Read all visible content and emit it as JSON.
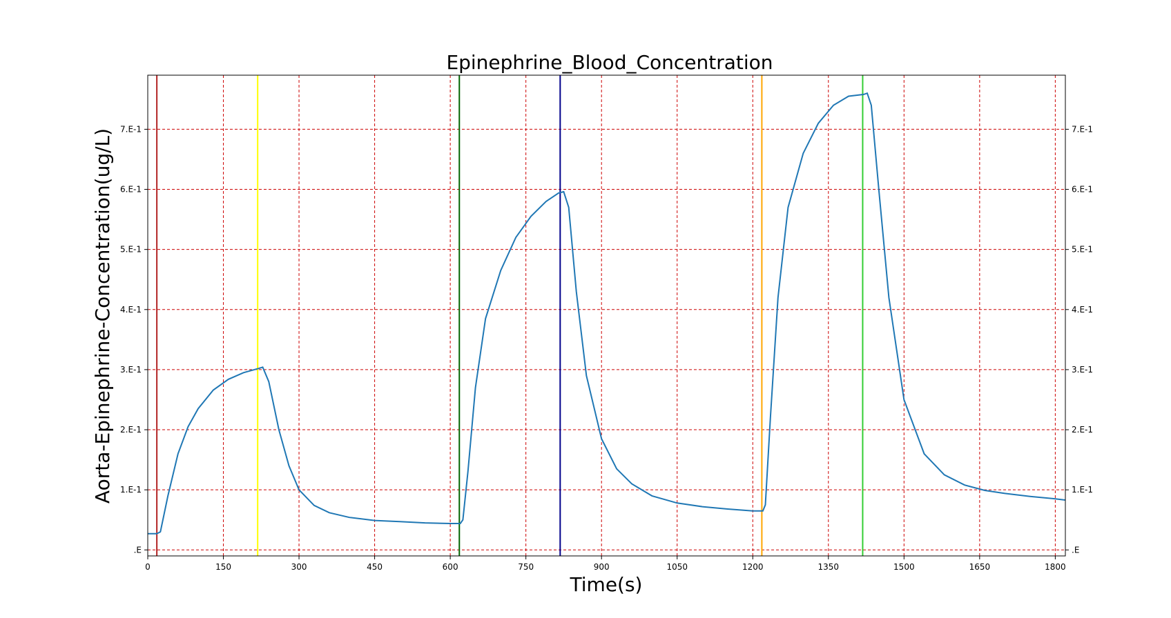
{
  "chart_data": {
    "type": "line",
    "title": "Epinephrine_Blood_Concentration",
    "xlabel": "Time(s)",
    "ylabel": "Aorta-Epinephrine-Concentration(ug/L)",
    "xlim": [
      0,
      1820
    ],
    "ylim": [
      -0.01,
      0.79
    ],
    "grid": true,
    "x_ticks": [
      0,
      150,
      300,
      450,
      600,
      750,
      900,
      1050,
      1200,
      1350,
      1500,
      1650,
      1800
    ],
    "x_tick_labels": [
      "0",
      "150",
      "300",
      "450",
      "600",
      "750",
      "900",
      "1050",
      "1200",
      "1350",
      "1500",
      "1650",
      "1800"
    ],
    "y_ticks": [
      0,
      0.1,
      0.2,
      0.3,
      0.4,
      0.5,
      0.6,
      0.7
    ],
    "y_tick_labels": [
      ".E",
      "1.E-1",
      "2.E-1",
      "3.E-1",
      "4.E-1",
      "5.E-1",
      "6.E-1",
      "7.E-1"
    ],
    "series_color": "#1f77b4",
    "series": [
      {
        "x": [
          0,
          18,
          25,
          40,
          60,
          80,
          100,
          130,
          160,
          190,
          220,
          228,
          240,
          260,
          280,
          300,
          330,
          360,
          400,
          450,
          500,
          550,
          600,
          620,
          625,
          635,
          650,
          670,
          700,
          730,
          760,
          790,
          815,
          825,
          835,
          850,
          870,
          900,
          930,
          960,
          1000,
          1050,
          1100,
          1150,
          1200,
          1220,
          1225,
          1235,
          1250,
          1270,
          1300,
          1330,
          1360,
          1390,
          1420,
          1427,
          1435,
          1450,
          1470,
          1500,
          1540,
          1580,
          1620,
          1660,
          1700,
          1750,
          1800,
          1820
        ],
        "y": [
          0.027,
          0.027,
          0.03,
          0.09,
          0.16,
          0.205,
          0.235,
          0.266,
          0.284,
          0.295,
          0.302,
          0.304,
          0.28,
          0.2,
          0.14,
          0.1,
          0.074,
          0.062,
          0.054,
          0.049,
          0.047,
          0.045,
          0.044,
          0.044,
          0.05,
          0.13,
          0.27,
          0.385,
          0.465,
          0.52,
          0.555,
          0.58,
          0.594,
          0.596,
          0.57,
          0.43,
          0.29,
          0.185,
          0.135,
          0.11,
          0.09,
          0.078,
          0.072,
          0.068,
          0.065,
          0.065,
          0.075,
          0.22,
          0.42,
          0.57,
          0.66,
          0.71,
          0.74,
          0.755,
          0.758,
          0.76,
          0.74,
          0.6,
          0.42,
          0.25,
          0.16,
          0.125,
          0.108,
          0.099,
          0.094,
          0.089,
          0.085,
          0.083
        ]
      }
    ],
    "event_lines": [
      {
        "x": 18,
        "color": "#b22222"
      },
      {
        "x": 218,
        "color": "#ffff00"
      },
      {
        "x": 618,
        "color": "#006400"
      },
      {
        "x": 818,
        "color": "#00008b"
      },
      {
        "x": 1218,
        "color": "#ffa500"
      },
      {
        "x": 1418,
        "color": "#32cd32"
      }
    ]
  }
}
